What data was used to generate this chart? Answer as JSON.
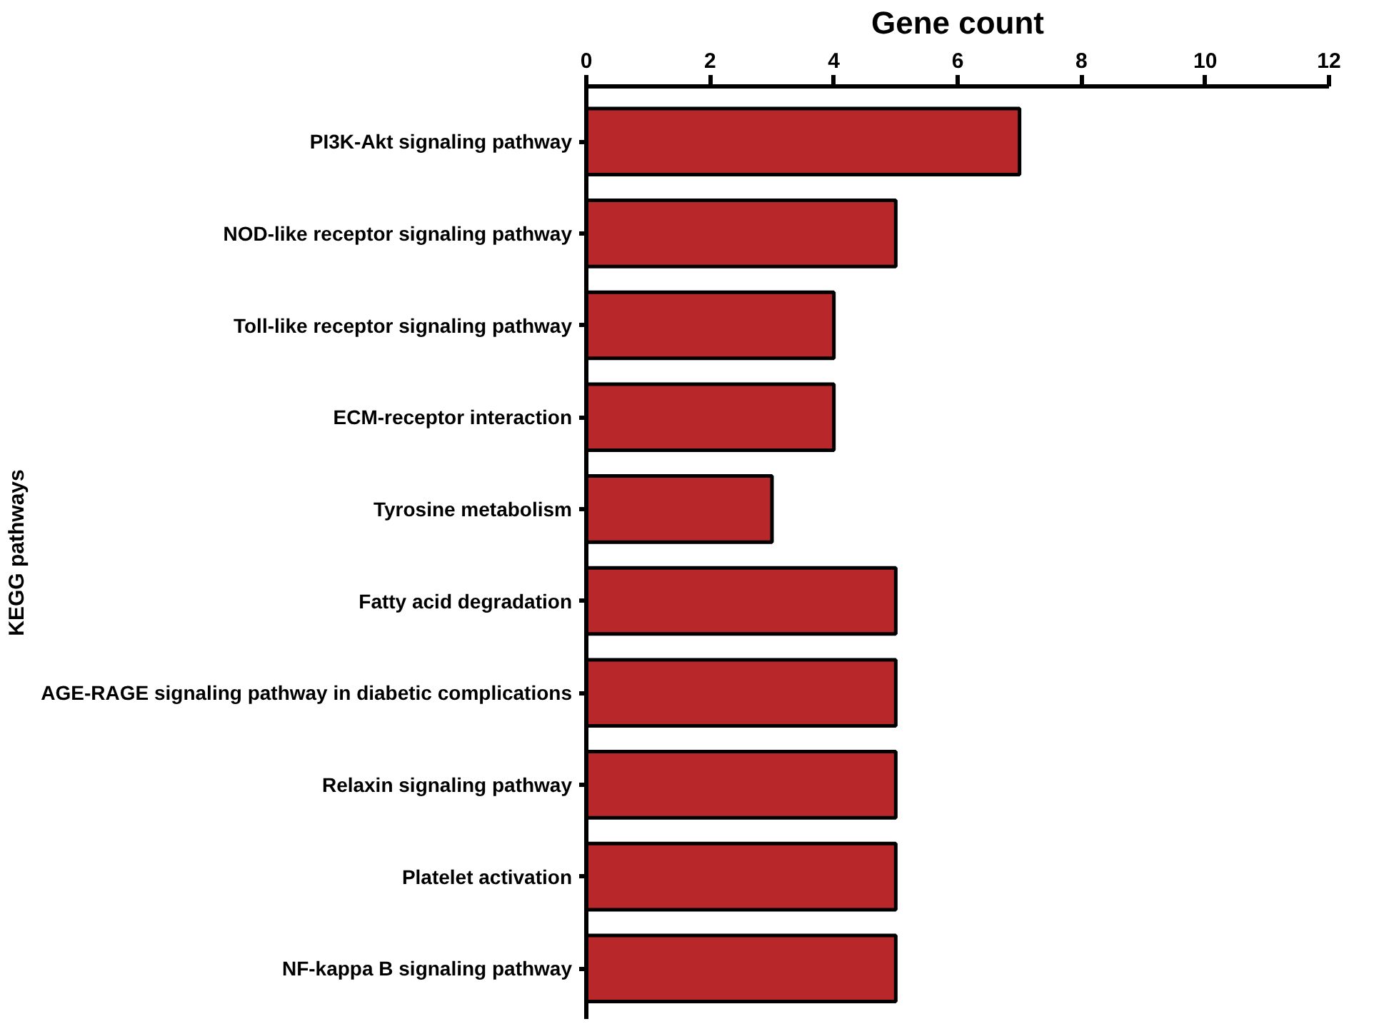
{
  "chart_data": {
    "type": "bar",
    "orientation": "horizontal",
    "xlabel": "Gene count",
    "ylabel": "KEGG pathways",
    "categories": [
      "PI3K-Akt signaling pathway",
      "NOD-like receptor signaling pathway",
      "Toll-like receptor signaling pathway",
      "ECM-receptor interaction",
      "Tyrosine metabolism",
      "Fatty acid degradation",
      "AGE-RAGE signaling pathway in diabetic complications",
      "Relaxin signaling pathway",
      "Platelet activation",
      "NF-kappa B signaling pathway"
    ],
    "values": [
      7,
      5,
      4,
      4,
      3,
      5,
      5,
      5,
      5,
      5
    ],
    "color": "#b8282a",
    "xlim": [
      0,
      12
    ],
    "xticks": [
      0,
      2,
      4,
      6,
      8,
      10,
      12
    ],
    "grid": false
  }
}
